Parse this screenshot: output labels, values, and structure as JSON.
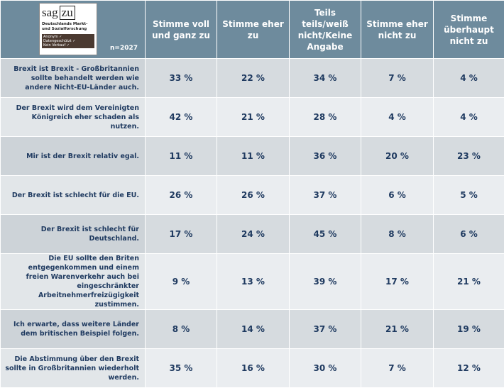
{
  "logo": {
    "brand_left": "sag",
    "brand_right": "zu",
    "tagline": "Deutschlands Markt- und Sozialforschung",
    "badges": [
      "Anonym ✓",
      "Datengeschützt ✓",
      "Kein Verkauf ✓"
    ]
  },
  "sample": "n=2027",
  "table": {
    "columns": [
      "Stimme voll und ganz zu",
      "Stimme eher zu",
      "Teils teils/weiß nicht/Keine Angabe",
      "Stimme eher nicht zu",
      "Stimme überhaupt nicht zu"
    ],
    "rows": [
      [
        "Brexit ist Brexit - Großbritannien sollte behandelt werden wie andere Nicht-EU-Länder auch.",
        "33 %",
        "22 %",
        "34 %",
        "7 %",
        "4 %"
      ],
      [
        "Der Brexit wird dem Vereinigten Königreich eher schaden als nutzen.",
        "42 %",
        "21 %",
        "28 %",
        "4 %",
        "4 %"
      ],
      [
        "Mir ist der Brexit relativ egal.",
        "11 %",
        "11 %",
        "36 %",
        "20 %",
        "23 %"
      ],
      [
        "Der Brexit ist schlecht für die EU.",
        "26 %",
        "26 %",
        "37 %",
        "6 %",
        "5 %"
      ],
      [
        "Der Brexit ist schlecht für Deutschland.",
        "17 %",
        "24 %",
        "45 %",
        "8 %",
        "6 %"
      ],
      [
        "Die EU sollte den Briten entgegenkommen und einem freien Warenverkehr auch bei eingeschränkter Arbeitnehmerfreizügigkeit zustimmen.",
        "9 %",
        "13 %",
        "39 %",
        "17 %",
        "21 %"
      ],
      [
        "Ich erwarte, dass weitere Länder dem britischen Beispiel folgen.",
        "8 %",
        "14 %",
        "37 %",
        "21 %",
        "19 %"
      ],
      [
        "Die Abstimmung über den Brexit sollte in Großbritannien wiederholt werden.",
        "35 %",
        "16 %",
        "30 %",
        "7 %",
        "12 %"
      ]
    ]
  }
}
